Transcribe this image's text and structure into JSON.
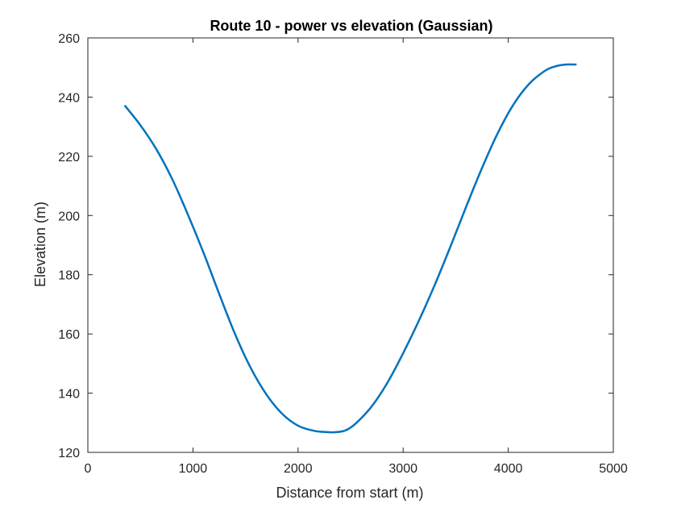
{
  "chart_data": {
    "type": "line",
    "title": "Route 10 - power vs elevation (Gaussian)",
    "xlabel": "Distance from start (m)",
    "ylabel": "Elevation (m)",
    "xlim": [
      0,
      5000
    ],
    "ylim": [
      120,
      260
    ],
    "xticks": [
      0,
      1000,
      2000,
      3000,
      4000,
      5000
    ],
    "yticks": [
      120,
      140,
      160,
      180,
      200,
      220,
      240,
      260
    ],
    "grid": false,
    "series": [
      {
        "color": "#0072bd",
        "x": [
          350,
          500,
          650,
          800,
          950,
          1100,
          1250,
          1400,
          1550,
          1700,
          1850,
          2000,
          2150,
          2250,
          2350,
          2450,
          2550,
          2700,
          2850,
          3000,
          3150,
          3300,
          3450,
          3600,
          3750,
          3900,
          4050,
          4200,
          4350,
          4450,
          4550,
          4650
        ],
        "y": [
          237.2,
          230.5,
          222.5,
          212.5,
          200.5,
          187.5,
          173.5,
          160.0,
          148.5,
          139.5,
          133.0,
          129.0,
          127.3,
          126.9,
          126.8,
          127.4,
          129.8,
          135.5,
          143.5,
          153.5,
          164.5,
          176.5,
          189.5,
          203.0,
          216.0,
          227.8,
          237.5,
          244.5,
          248.9,
          250.4,
          251.0,
          251.0
        ]
      }
    ]
  }
}
